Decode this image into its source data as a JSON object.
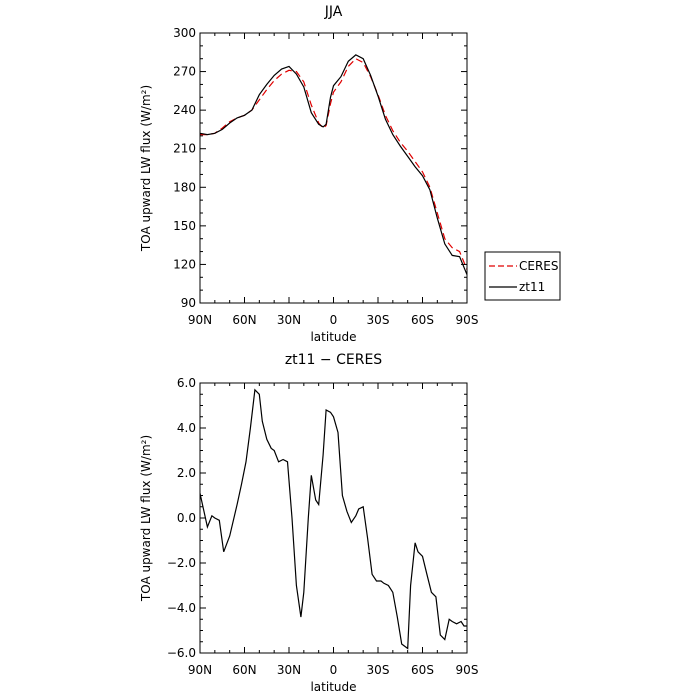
{
  "chart_data": [
    {
      "type": "line",
      "title": "JJA",
      "xlabel": "latitude",
      "ylabel": "TOA upward LW flux (W/m²)",
      "xlim": [
        90,
        -90
      ],
      "ylim": [
        90,
        300
      ],
      "xticks": [
        90,
        60,
        30,
        0,
        -30,
        -60,
        -90
      ],
      "xtick_labels": [
        "90N",
        "60N",
        "30N",
        "0",
        "30S",
        "60S",
        "90S"
      ],
      "yticks": [
        90,
        120,
        150,
        180,
        210,
        240,
        270,
        300
      ],
      "ytick_labels": [
        "90",
        "120",
        "150",
        "180",
        "210",
        "240",
        "270",
        "300"
      ],
      "grid": false,
      "legend": "right",
      "series": [
        {
          "name": "CERES",
          "color": "#e00000",
          "dash": "dashed",
          "x": [
            90,
            85,
            80,
            75,
            70,
            65,
            60,
            55,
            50,
            45,
            40,
            35,
            30,
            25,
            20,
            15,
            10,
            7,
            5,
            2,
            0,
            -5,
            -10,
            -15,
            -20,
            -25,
            -30,
            -35,
            -40,
            -45,
            -50,
            -55,
            -60,
            -65,
            -70,
            -75,
            -80,
            -85,
            -90
          ],
          "values": [
            221,
            221,
            222,
            226,
            231,
            234,
            236,
            240,
            248,
            256,
            263,
            268,
            271,
            270,
            262,
            244,
            230,
            226,
            228,
            245,
            254,
            262,
            274,
            280,
            277,
            266,
            252,
            236,
            224,
            215,
            208,
            200,
            192,
            180,
            160,
            140,
            133,
            130,
            116
          ]
        },
        {
          "name": "zt11",
          "color": "#000000",
          "dash": "solid",
          "x": [
            90,
            85,
            80,
            75,
            70,
            65,
            60,
            55,
            50,
            45,
            40,
            35,
            30,
            25,
            20,
            15,
            10,
            7,
            5,
            2,
            0,
            -5,
            -10,
            -15,
            -20,
            -25,
            -30,
            -35,
            -40,
            -45,
            -50,
            -55,
            -60,
            -65,
            -70,
            -75,
            -80,
            -85,
            -90
          ],
          "values": [
            222,
            221,
            222,
            225,
            230,
            234,
            236,
            240,
            252,
            260,
            267,
            272,
            274,
            268,
            258,
            238,
            229,
            227,
            229,
            250,
            259,
            266,
            278,
            283,
            280,
            267,
            251,
            233,
            221,
            212,
            204,
            196,
            189,
            178,
            156,
            136,
            127,
            126,
            112
          ]
        }
      ]
    },
    {
      "type": "line",
      "title": "zt11 − CERES",
      "xlabel": "latitude",
      "ylabel": "TOA upward LW flux (W/m²)",
      "xlim": [
        90,
        -90
      ],
      "ylim": [
        -6,
        6
      ],
      "xticks": [
        90,
        60,
        30,
        0,
        -30,
        -60,
        -90
      ],
      "xtick_labels": [
        "90N",
        "60N",
        "30N",
        "0",
        "30S",
        "60S",
        "90S"
      ],
      "yticks": [
        -6,
        -4,
        -2,
        0,
        2,
        4,
        6
      ],
      "ytick_labels": [
        "−6.0",
        "−4.0",
        "−2.0",
        "0.0",
        "2.0",
        "4.0",
        "6.0"
      ],
      "grid": false,
      "series": [
        {
          "color": "#000000",
          "dash": "solid",
          "x": [
            90,
            85,
            82,
            80,
            77,
            74,
            70,
            65,
            62,
            59,
            56,
            53,
            50,
            48,
            45,
            42,
            40,
            37,
            34,
            31,
            28,
            25,
            22,
            20,
            17,
            15,
            12,
            10,
            7,
            5,
            2,
            0,
            -3,
            -6,
            -9,
            -12,
            -15,
            -17,
            -20,
            -23,
            -26,
            -29,
            -32,
            -34,
            -37,
            -40,
            -43,
            -46,
            -50,
            -52,
            -55,
            -57,
            -60,
            -63,
            -66,
            -69,
            -72,
            -75,
            -78,
            -80,
            -83,
            -86,
            -88,
            -90
          ],
          "values": [
            1.1,
            -0.4,
            0.1,
            0.0,
            -0.1,
            -1.5,
            -0.8,
            0.6,
            1.5,
            2.5,
            4.0,
            5.7,
            5.5,
            4.3,
            3.5,
            3.1,
            3.0,
            2.5,
            2.6,
            2.5,
            0.0,
            -3.0,
            -4.4,
            -3.3,
            0.0,
            1.9,
            0.8,
            0.6,
            2.8,
            4.8,
            4.7,
            4.5,
            3.8,
            1.0,
            0.3,
            -0.2,
            0.1,
            0.4,
            0.5,
            -0.9,
            -2.5,
            -2.8,
            -2.8,
            -2.9,
            -3.0,
            -3.3,
            -4.4,
            -5.6,
            -5.8,
            -3.0,
            -1.1,
            -1.5,
            -1.7,
            -2.5,
            -3.3,
            -3.5,
            -5.2,
            -5.4,
            -4.5,
            -4.6,
            -4.7,
            -4.6,
            -4.8,
            -4.8
          ]
        }
      ]
    }
  ]
}
